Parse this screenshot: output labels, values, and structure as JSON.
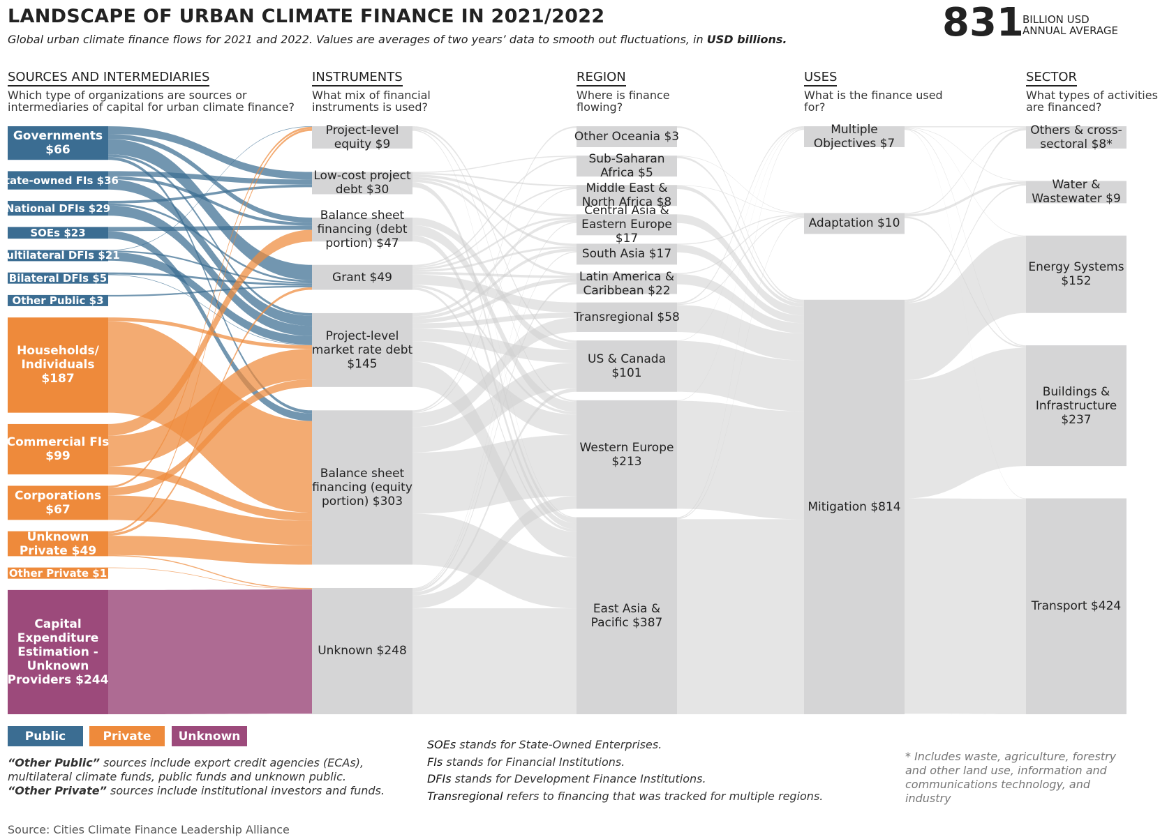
{
  "chart_data": {
    "type": "sankey",
    "title": "LANDSCAPE OF URBAN CLIMATE FINANCE IN 2021/2022",
    "subtitle": "Global urban climate finance flows for 2021 and 2022. Values are averages of two years’ data to smooth out fluctuations, in",
    "subtitle_emphasis": "USD billions.",
    "total": 831,
    "total_label": "BILLION USD ANNUAL AVERAGE",
    "groups": [
      {
        "name": "Public",
        "color": "#3b6d92"
      },
      {
        "name": "Private",
        "color": "#ee8a3b"
      },
      {
        "name": "Unknown",
        "color": "#9c4a7b"
      }
    ],
    "node_color": "#d5d5d6",
    "flow_color": "#cfcfd0",
    "columns": [
      {
        "header": "SOURCES AND INTERMEDIARIES",
        "question": "Which type of organizations are sources or intermediaries of capital for urban climate finance?",
        "nodes": [
          {
            "name": "Governments",
            "value": 66,
            "value_label": "$66",
            "group": 0
          },
          {
            "name": "State-owned FIs",
            "value": 36,
            "value_label": "$36",
            "group": 0
          },
          {
            "name": "National DFIs",
            "value": 29,
            "value_label": "$29",
            "group": 0
          },
          {
            "name": "SOEs",
            "value": 23,
            "value_label": "$23",
            "group": 0
          },
          {
            "name": "Multilateral DFIs",
            "value": 21,
            "value_label": "$21",
            "group": 0
          },
          {
            "name": "Bilateral DFIs",
            "value": 5,
            "value_label": "$5",
            "group": 0
          },
          {
            "name": "Other Public",
            "value": 3,
            "value_label": "$3",
            "group": 0
          },
          {
            "name": "Households/ Individuals",
            "value": 187,
            "value_label": "$187",
            "group": 1
          },
          {
            "name": "Commercial FIs",
            "value": 99,
            "value_label": "$99",
            "group": 1
          },
          {
            "name": "Corporations",
            "value": 67,
            "value_label": "$67",
            "group": 1
          },
          {
            "name": "Unknown Private",
            "value": 49,
            "value_label": "$49",
            "group": 1
          },
          {
            "name": "Other Private",
            "value": 1,
            "value_label": "$1",
            "group": 1
          },
          {
            "name": "Capital Expenditure Estimation - Unknown Providers",
            "value": 244,
            "value_label": "$244",
            "group": 2
          }
        ]
      },
      {
        "header": "INSTRUMENTS",
        "question": "What mix of financial instruments is used?",
        "nodes": [
          {
            "name": "Project-level equity",
            "value": 9,
            "value_label": "$9"
          },
          {
            "name": "Low-cost project debt",
            "value": 30,
            "value_label": "$30"
          },
          {
            "name": "Balance sheet financing (debt portion)",
            "value": 47,
            "value_label": "$47"
          },
          {
            "name": "Grant",
            "value": 49,
            "value_label": "$49"
          },
          {
            "name": "Project-level market rate debt",
            "value": 145,
            "value_label": "$145"
          },
          {
            "name": "Balance sheet financing (equity portion)",
            "value": 303,
            "value_label": "$303"
          },
          {
            "name": "Unknown",
            "value": 248,
            "value_label": "$248"
          }
        ]
      },
      {
        "header": "REGION",
        "question": "Where is finance flowing?",
        "nodes": [
          {
            "name": "Other Oceania",
            "value": 3,
            "value_label": "$3"
          },
          {
            "name": "Sub-Saharan Africa",
            "value": 5,
            "value_label": "$5"
          },
          {
            "name": "Middle East & North Africa",
            "value": 8,
            "value_label": "$8"
          },
          {
            "name": "Central Asia & Eastern Europe",
            "value": 17,
            "value_label": "$17"
          },
          {
            "name": "South Asia",
            "value": 17,
            "value_label": "$17"
          },
          {
            "name": "Latin America & Caribbean",
            "value": 22,
            "value_label": "$22"
          },
          {
            "name": "Transregional",
            "value": 58,
            "value_label": "$58"
          },
          {
            "name": "US & Canada",
            "value": 101,
            "value_label": "$101"
          },
          {
            "name": "Western Europe",
            "value": 213,
            "value_label": "$213"
          },
          {
            "name": "East Asia & Pacific",
            "value": 387,
            "value_label": "$387"
          }
        ]
      },
      {
        "header": "USES",
        "question": "What is the finance used for?",
        "nodes": [
          {
            "name": "Multiple Objectives",
            "value": 7,
            "value_label": "$7"
          },
          {
            "name": "Adaptation",
            "value": 10,
            "value_label": "$10"
          },
          {
            "name": "Mitigation",
            "value": 814,
            "value_label": "$814"
          }
        ]
      },
      {
        "header": "SECTOR",
        "question": "What types of activities are financed?",
        "nodes": [
          {
            "name": "Others & cross-sectoral",
            "value": 8,
            "value_label": "$8*"
          },
          {
            "name": "Water & Wastewater",
            "value": 9,
            "value_label": "$9"
          },
          {
            "name": "Energy Systems",
            "value": 152,
            "value_label": "$152"
          },
          {
            "name": "Buildings & Infrastructure",
            "value": 237,
            "value_label": "$237"
          },
          {
            "name": "Transport",
            "value": 424,
            "value_label": "$424"
          }
        ]
      }
    ],
    "flows": [
      [
        {
          "from": 0,
          "to": 1,
          "value": 15
        },
        {
          "from": 0,
          "to": 2,
          "value": 10
        },
        {
          "from": 0,
          "to": 3,
          "value": 30
        },
        {
          "from": 0,
          "to": 4,
          "value": 5
        },
        {
          "from": 0,
          "to": 5,
          "value": 6
        },
        {
          "from": 1,
          "to": 1,
          "value": 10
        },
        {
          "from": 1,
          "to": 2,
          "value": 6
        },
        {
          "from": 1,
          "to": 4,
          "value": 20
        },
        {
          "from": 2,
          "to": 1,
          "value": 5
        },
        {
          "from": 2,
          "to": 3,
          "value": 4
        },
        {
          "from": 2,
          "to": 4,
          "value": 20
        },
        {
          "from": 3,
          "to": 2,
          "value": 8
        },
        {
          "from": 3,
          "to": 5,
          "value": 15
        },
        {
          "from": 4,
          "to": 0,
          "value": 1
        },
        {
          "from": 4,
          "to": 3,
          "value": 3
        },
        {
          "from": 4,
          "to": 4,
          "value": 17
        },
        {
          "from": 5,
          "to": 3,
          "value": 4
        },
        {
          "from": 5,
          "to": 4,
          "value": 1
        },
        {
          "from": 6,
          "to": 3,
          "value": 3
        },
        {
          "from": 7,
          "to": 4,
          "value": 7
        },
        {
          "from": 7,
          "to": 5,
          "value": 180
        },
        {
          "from": 8,
          "to": 2,
          "value": 23
        },
        {
          "from": 8,
          "to": 4,
          "value": 60
        },
        {
          "from": 8,
          "to": 5,
          "value": 16
        },
        {
          "from": 9,
          "to": 0,
          "value": 4
        },
        {
          "from": 9,
          "to": 4,
          "value": 15
        },
        {
          "from": 9,
          "to": 5,
          "value": 48
        },
        {
          "from": 10,
          "to": 0,
          "value": 4
        },
        {
          "from": 10,
          "to": 3,
          "value": 5
        },
        {
          "from": 10,
          "to": 5,
          "value": 38
        },
        {
          "from": 10,
          "to": 6,
          "value": 2
        },
        {
          "from": 11,
          "to": 6,
          "value": 1
        },
        {
          "from": 12,
          "to": 6,
          "value": 244
        }
      ],
      [
        {
          "from": 0,
          "to": 7,
          "value": 4
        },
        {
          "from": 0,
          "to": 8,
          "value": 3
        },
        {
          "from": 0,
          "to": 9,
          "value": 2
        },
        {
          "from": 1,
          "to": 1,
          "value": 2
        },
        {
          "from": 1,
          "to": 2,
          "value": 3
        },
        {
          "from": 1,
          "to": 3,
          "value": 5
        },
        {
          "from": 1,
          "to": 4,
          "value": 5
        },
        {
          "from": 1,
          "to": 5,
          "value": 5
        },
        {
          "from": 1,
          "to": 9,
          "value": 10
        },
        {
          "from": 2,
          "to": 7,
          "value": 15
        },
        {
          "from": 2,
          "to": 8,
          "value": 20
        },
        {
          "from": 2,
          "to": 9,
          "value": 12
        },
        {
          "from": 3,
          "to": 1,
          "value": 3
        },
        {
          "from": 3,
          "to": 2,
          "value": 3
        },
        {
          "from": 3,
          "to": 3,
          "value": 4
        },
        {
          "from": 3,
          "to": 4,
          "value": 4
        },
        {
          "from": 3,
          "to": 5,
          "value": 5
        },
        {
          "from": 3,
          "to": 6,
          "value": 20
        },
        {
          "from": 3,
          "to": 8,
          "value": 5
        },
        {
          "from": 3,
          "to": 9,
          "value": 5
        },
        {
          "from": 4,
          "to": 3,
          "value": 6
        },
        {
          "from": 4,
          "to": 4,
          "value": 6
        },
        {
          "from": 4,
          "to": 5,
          "value": 8
        },
        {
          "from": 4,
          "to": 6,
          "value": 10
        },
        {
          "from": 4,
          "to": 7,
          "value": 25
        },
        {
          "from": 4,
          "to": 8,
          "value": 40
        },
        {
          "from": 4,
          "to": 9,
          "value": 50
        },
        {
          "from": 5,
          "to": 0,
          "value": 3
        },
        {
          "from": 5,
          "to": 2,
          "value": 2
        },
        {
          "from": 5,
          "to": 6,
          "value": 28
        },
        {
          "from": 5,
          "to": 7,
          "value": 50
        },
        {
          "from": 5,
          "to": 8,
          "value": 120
        },
        {
          "from": 5,
          "to": 9,
          "value": 100
        },
        {
          "from": 6,
          "to": 3,
          "value": 2
        },
        {
          "from": 6,
          "to": 4,
          "value": 2
        },
        {
          "from": 6,
          "to": 5,
          "value": 4
        },
        {
          "from": 6,
          "to": 7,
          "value": 7
        },
        {
          "from": 6,
          "to": 8,
          "value": 25
        },
        {
          "from": 6,
          "to": 9,
          "value": 208
        }
      ],
      [
        {
          "from": 0,
          "to": 2,
          "value": 3
        },
        {
          "from": 1,
          "to": 1,
          "value": 1
        },
        {
          "from": 1,
          "to": 2,
          "value": 4
        },
        {
          "from": 2,
          "to": 1,
          "value": 1
        },
        {
          "from": 2,
          "to": 2,
          "value": 7
        },
        {
          "from": 3,
          "to": 2,
          "value": 17
        },
        {
          "from": 4,
          "to": 1,
          "value": 2
        },
        {
          "from": 4,
          "to": 2,
          "value": 15
        },
        {
          "from": 5,
          "to": 1,
          "value": 2
        },
        {
          "from": 5,
          "to": 2,
          "value": 20
        },
        {
          "from": 6,
          "to": 0,
          "value": 3
        },
        {
          "from": 6,
          "to": 1,
          "value": 2
        },
        {
          "from": 6,
          "to": 2,
          "value": 53
        },
        {
          "from": 7,
          "to": 0,
          "value": 1
        },
        {
          "from": 7,
          "to": 2,
          "value": 100
        },
        {
          "from": 8,
          "to": 0,
          "value": 1
        },
        {
          "from": 8,
          "to": 2,
          "value": 212
        },
        {
          "from": 9,
          "to": 0,
          "value": 2
        },
        {
          "from": 9,
          "to": 1,
          "value": 2
        },
        {
          "from": 9,
          "to": 2,
          "value": 383
        }
      ],
      [
        {
          "from": 0,
          "to": 0,
          "value": 2
        },
        {
          "from": 0,
          "to": 1,
          "value": 1
        },
        {
          "from": 0,
          "to": 2,
          "value": 1
        },
        {
          "from": 0,
          "to": 3,
          "value": 2
        },
        {
          "from": 0,
          "to": 4,
          "value": 1
        },
        {
          "from": 1,
          "to": 0,
          "value": 2
        },
        {
          "from": 1,
          "to": 1,
          "value": 5
        },
        {
          "from": 1,
          "to": 3,
          "value": 3
        },
        {
          "from": 2,
          "to": 0,
          "value": 4
        },
        {
          "from": 2,
          "to": 1,
          "value": 3
        },
        {
          "from": 2,
          "to": 2,
          "value": 151
        },
        {
          "from": 2,
          "to": 3,
          "value": 232
        },
        {
          "from": 2,
          "to": 4,
          "value": 423
        }
      ]
    ],
    "notes_left": [
      {
        "term": "“Other Public”",
        "text": "sources include export credit agencies (ECAs), multilateral climate funds, public funds and unknown public."
      },
      {
        "term": "“Other Private”",
        "text": "sources include institutional investors and funds."
      }
    ],
    "notes_middle": [
      {
        "term": "SOEs",
        "text": "stands for State-Owned Enterprises."
      },
      {
        "term": "FIs",
        "text": "stands for Financial Institutions."
      },
      {
        "term": "DFIs",
        "text": "stands for Development Finance Institutions."
      },
      {
        "term": "Transregional",
        "text": "refers to financing that was tracked for multiple regions."
      }
    ],
    "footnote": "* Includes waste, agriculture, forestry and other land use, information and communications technology, and industry",
    "source": "Source: Cities Climate Finance Leadership Alliance"
  }
}
